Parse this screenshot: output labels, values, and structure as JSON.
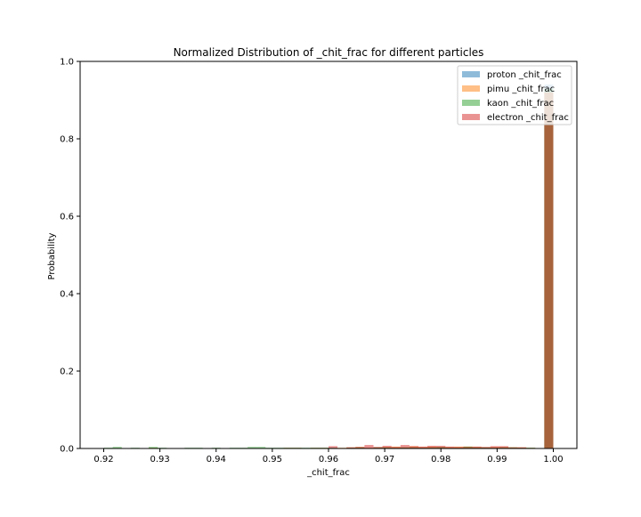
{
  "chart_data": {
    "type": "histogram",
    "title": "Normalized Distribution of _chit_frac for different particles",
    "xlabel": "_chit_frac",
    "ylabel": "Probability",
    "xlim": [
      0.9158,
      1.0042
    ],
    "ylim": [
      0,
      1.0
    ],
    "x_ticks": [
      "0.92",
      "0.93",
      "0.94",
      "0.95",
      "0.96",
      "0.97",
      "0.98",
      "0.99",
      "1.00"
    ],
    "y_ticks": [
      "0.0",
      "0.2",
      "0.4",
      "0.6",
      "0.8",
      "1.0"
    ],
    "bin_start": 0.92,
    "bin_width": 0.0016,
    "legend_position": "top-right",
    "grid": false,
    "series": [
      {
        "name": "proton _chit_frac",
        "color": "#1f77b4",
        "values": [
          0,
          0,
          0,
          0,
          0,
          0,
          0,
          0,
          0,
          0,
          0,
          0,
          0,
          0,
          0,
          0,
          0,
          0,
          0,
          0,
          0,
          0,
          0,
          0,
          0,
          0,
          0,
          0,
          0,
          0,
          0,
          0,
          0,
          0,
          0,
          0,
          0,
          0,
          0,
          0,
          0,
          0,
          0,
          0,
          0,
          0,
          0,
          0,
          0,
          0.94
        ]
      },
      {
        "name": "pimu _chit_frac",
        "color": "#ff7f0e",
        "values": [
          0,
          0.001,
          0,
          0,
          0,
          0.002,
          0,
          0,
          0,
          0,
          0.001,
          0,
          0.001,
          0,
          0.001,
          0,
          0.001,
          0,
          0.001,
          0,
          0.002,
          0.002,
          0,
          0.002,
          0.002,
          0,
          0.002,
          0.003,
          0.004,
          0.002,
          0.003,
          0.004,
          0.005,
          0.003,
          0.006,
          0.004,
          0.005,
          0.004,
          0.004,
          0.005,
          0.005,
          0.004,
          0.003,
          0.004,
          0.004,
          0.003,
          0.003,
          0.002,
          0,
          0.92
        ]
      },
      {
        "name": "kaon _chit_frac",
        "color": "#2ca02c",
        "values": [
          0.002,
          0.004,
          0,
          0.002,
          0,
          0.004,
          0.002,
          0,
          0,
          0.002,
          0.002,
          0.001,
          0.002,
          0.001,
          0.002,
          0.002,
          0.004,
          0.004,
          0.002,
          0.002,
          0.002,
          0.002,
          0.002,
          0.002,
          0.002,
          0.002,
          0,
          0.002,
          0.003,
          0,
          0.003,
          0.003,
          0.002,
          0.003,
          0.003,
          0.002,
          0.003,
          0.004,
          0.002,
          0.002,
          0.005,
          0.003,
          0.003,
          0.002,
          0.003,
          0.003,
          0.002,
          0.002,
          0,
          0.93
        ]
      },
      {
        "name": "electron _chit_frac",
        "color": "#d62728",
        "values": [
          0,
          0,
          0,
          0,
          0,
          0,
          0,
          0,
          0,
          0,
          0,
          0,
          0,
          0,
          0,
          0,
          0,
          0,
          0,
          0,
          0,
          0,
          0,
          0,
          0,
          0.006,
          0,
          0.003,
          0.004,
          0.009,
          0.004,
          0.007,
          0.004,
          0.009,
          0.006,
          0.005,
          0.007,
          0.007,
          0.005,
          0.004,
          0.004,
          0.005,
          0.004,
          0.006,
          0.006,
          0.003,
          0.003,
          0.001,
          0,
          0.92
        ]
      }
    ]
  }
}
